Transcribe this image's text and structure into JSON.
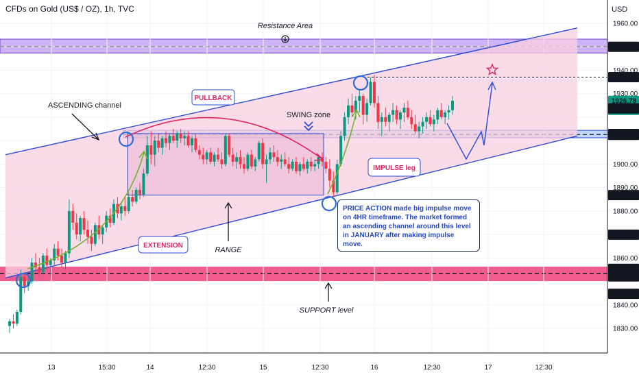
{
  "header": {
    "title": "CFDs on Gold (US$ / OZ), 1h, TVC",
    "currency": "USD"
  },
  "colors": {
    "up": "#089981",
    "down": "#f23645",
    "channel_fill": "#f8cfe0",
    "channel_line": "#2b4bd2",
    "resistance_zone": "#b38cf1",
    "support_zone": "#ef3f7a",
    "swing_zone": "#a9c8f5",
    "arrow_green": "#71b42c",
    "pullback_arc": "#e0245e"
  },
  "chart_data": {
    "type": "candlestick",
    "symbol": "CFDs on Gold (US$ / OZ)",
    "timeframe": "1h",
    "source": "TVC",
    "currency": "USD",
    "ylim": [
      1822,
      1968
    ],
    "y_ticks": [
      1830,
      1840,
      1850,
      1860,
      1870,
      1880,
      1890,
      1900,
      1910,
      1920,
      1930,
      1940,
      1950,
      1960
    ],
    "y_tick_labels": [
      "1830.00",
      "1840.00",
      "",
      "1860.00",
      "",
      "1880.00",
      "1890.00",
      "1900.00",
      "",
      "",
      "1930.00",
      "1940.00",
      "",
      "1960.00"
    ],
    "x_ticks": [
      "13",
      "15:30",
      "14",
      "12:30",
      "15",
      "12:30",
      "16",
      "12:30",
      "17",
      "12:30"
    ],
    "price_tags": [
      {
        "value": "1950.00",
        "price": 1950.0,
        "color": "#131722"
      },
      {
        "value": "1937.08",
        "price": 1937.08,
        "color": "#131722"
      },
      {
        "value": "1926.78",
        "price": 1926.78,
        "color": "#089981",
        "sub": "00:54"
      },
      {
        "value": "1923.74",
        "price": 1923.74,
        "color": "#131722"
      },
      {
        "value": "1912.82",
        "price": 1912.82,
        "color": "#131722"
      },
      {
        "value": "1912.45",
        "price": 1912.45,
        "color": "#131722"
      },
      {
        "value": "1886.80",
        "price": 1886.8,
        "color": "#131722"
      },
      {
        "value": "1869.92",
        "price": 1869.92,
        "color": "#131722"
      },
      {
        "value": "1855.34",
        "price": 1855.34,
        "color": "#131722"
      },
      {
        "value": "1853.31",
        "price": 1853.31,
        "color": "#131722"
      },
      {
        "value": "1845.29",
        "price": 1845.29,
        "color": "#131722"
      }
    ],
    "zones": {
      "resistance": [
        1948.8,
        1951.8
      ],
      "support": [
        1851.0,
        1855.4
      ],
      "swing": [
        1911.8,
        1913.8
      ],
      "range": [
        1886.8,
        1913.0
      ]
    },
    "channel": {
      "upper": [
        [
          0,
          1904
        ],
        [
          1,
          1958
        ]
      ],
      "lower": [
        [
          0,
          1851.5
        ],
        [
          1,
          1912
        ]
      ]
    },
    "candles_ohlc": [
      [
        1831,
        1834,
        1828,
        1833
      ],
      [
        1833,
        1836,
        1830,
        1832
      ],
      [
        1832,
        1838,
        1831,
        1837
      ],
      [
        1837,
        1855,
        1836,
        1852
      ],
      [
        1852,
        1854,
        1845,
        1848
      ],
      [
        1848,
        1852,
        1846,
        1850
      ],
      [
        1850,
        1860,
        1849,
        1858
      ],
      [
        1858,
        1862,
        1854,
        1856
      ],
      [
        1856,
        1860,
        1852,
        1854
      ],
      [
        1854,
        1862,
        1853,
        1861
      ],
      [
        1861,
        1864,
        1855,
        1857
      ],
      [
        1857,
        1860,
        1852,
        1859
      ],
      [
        1859,
        1866,
        1857,
        1864
      ],
      [
        1864,
        1867,
        1859,
        1861
      ],
      [
        1861,
        1864,
        1856,
        1858
      ],
      [
        1858,
        1863,
        1855,
        1862
      ],
      [
        1862,
        1885,
        1860,
        1880
      ],
      [
        1880,
        1883,
        1872,
        1875
      ],
      [
        1875,
        1879,
        1868,
        1870
      ],
      [
        1870,
        1878,
        1867,
        1877
      ],
      [
        1877,
        1880,
        1870,
        1872
      ],
      [
        1872,
        1876,
        1866,
        1869
      ],
      [
        1869,
        1872,
        1863,
        1866
      ],
      [
        1866,
        1875,
        1865,
        1874
      ],
      [
        1874,
        1878,
        1868,
        1870
      ],
      [
        1870,
        1874,
        1866,
        1873
      ],
      [
        1873,
        1880,
        1871,
        1878
      ],
      [
        1878,
        1881,
        1873,
        1875
      ],
      [
        1875,
        1885,
        1874,
        1883
      ],
      [
        1883,
        1886,
        1877,
        1879
      ],
      [
        1879,
        1884,
        1876,
        1882
      ],
      [
        1882,
        1886,
        1878,
        1880
      ],
      [
        1880,
        1888,
        1879,
        1886
      ],
      [
        1886,
        1889,
        1882,
        1884
      ],
      [
        1884,
        1890,
        1883,
        1889
      ],
      [
        1889,
        1892,
        1885,
        1887
      ],
      [
        1887,
        1898,
        1886,
        1896
      ],
      [
        1896,
        1912,
        1895,
        1908
      ],
      [
        1908,
        1914,
        1900,
        1904
      ],
      [
        1904,
        1912,
        1899,
        1910
      ],
      [
        1910,
        1913,
        1905,
        1907
      ],
      [
        1907,
        1912,
        1904,
        1911
      ],
      [
        1911,
        1914,
        1907,
        1909
      ],
      [
        1909,
        1913,
        1906,
        1912
      ],
      [
        1912,
        1915,
        1909,
        1910
      ],
      [
        1910,
        1914,
        1907,
        1913
      ],
      [
        1913,
        1915,
        1909,
        1911
      ],
      [
        1911,
        1914,
        1908,
        1912
      ],
      [
        1912,
        1914,
        1907,
        1908
      ],
      [
        1908,
        1912,
        1905,
        1911
      ],
      [
        1911,
        1913,
        1905,
        1906
      ],
      [
        1906,
        1908,
        1902,
        1904
      ],
      [
        1904,
        1907,
        1900,
        1902
      ],
      [
        1902,
        1906,
        1900,
        1905
      ],
      [
        1905,
        1907,
        1900,
        1901
      ],
      [
        1901,
        1905,
        1899,
        1904
      ],
      [
        1904,
        1907,
        1901,
        1902
      ],
      [
        1902,
        1905,
        1898,
        1900
      ],
      [
        1900,
        1913,
        1899,
        1912
      ],
      [
        1912,
        1913,
        1903,
        1904
      ],
      [
        1904,
        1907,
        1899,
        1901
      ],
      [
        1901,
        1905,
        1898,
        1903
      ],
      [
        1903,
        1906,
        1898,
        1900
      ],
      [
        1900,
        1903,
        1896,
        1898
      ],
      [
        1898,
        1905,
        1897,
        1904
      ],
      [
        1904,
        1906,
        1898,
        1899
      ],
      [
        1899,
        1903,
        1897,
        1902
      ],
      [
        1902,
        1910,
        1901,
        1909
      ],
      [
        1909,
        1911,
        1898,
        1900
      ],
      [
        1900,
        1904,
        1892,
        1902
      ],
      [
        1902,
        1907,
        1900,
        1905
      ],
      [
        1905,
        1908,
        1901,
        1903
      ],
      [
        1903,
        1906,
        1899,
        1901
      ],
      [
        1901,
        1904,
        1898,
        1902
      ],
      [
        1902,
        1905,
        1899,
        1900
      ],
      [
        1900,
        1903,
        1896,
        1898
      ],
      [
        1898,
        1902,
        1897,
        1901
      ],
      [
        1901,
        1903,
        1896,
        1897
      ],
      [
        1897,
        1901,
        1895,
        1900
      ],
      [
        1900,
        1903,
        1897,
        1898
      ],
      [
        1898,
        1902,
        1896,
        1901
      ],
      [
        1901,
        1903,
        1897,
        1899
      ],
      [
        1899,
        1902,
        1897,
        1900
      ],
      [
        1900,
        1904,
        1898,
        1903
      ],
      [
        1903,
        1905,
        1899,
        1901
      ],
      [
        1901,
        1903,
        1896,
        1898
      ],
      [
        1898,
        1902,
        1890,
        1893
      ],
      [
        1893,
        1897,
        1886,
        1888
      ],
      [
        1888,
        1902,
        1887,
        1900
      ],
      [
        1900,
        1914,
        1899,
        1912
      ],
      [
        1912,
        1922,
        1910,
        1920
      ],
      [
        1920,
        1928,
        1917,
        1925
      ],
      [
        1925,
        1930,
        1920,
        1922
      ],
      [
        1922,
        1929,
        1919,
        1927
      ],
      [
        1927,
        1932,
        1922,
        1929
      ],
      [
        1929,
        1930,
        1917,
        1921
      ],
      [
        1921,
        1928,
        1918,
        1926
      ],
      [
        1926,
        1937,
        1925,
        1935
      ],
      [
        1935,
        1938,
        1924,
        1926
      ],
      [
        1926,
        1929,
        1915,
        1918
      ],
      [
        1918,
        1922,
        1912,
        1920
      ],
      [
        1920,
        1924,
        1916,
        1918
      ],
      [
        1918,
        1922,
        1914,
        1921
      ],
      [
        1921,
        1926,
        1918,
        1923
      ],
      [
        1923,
        1925,
        1917,
        1919
      ],
      [
        1919,
        1923,
        1915,
        1922
      ],
      [
        1922,
        1926,
        1918,
        1924
      ],
      [
        1924,
        1927,
        1919,
        1920
      ],
      [
        1920,
        1923,
        1915,
        1917
      ],
      [
        1917,
        1921,
        1913,
        1914
      ],
      [
        1914,
        1918,
        1911,
        1916
      ],
      [
        1916,
        1920,
        1913,
        1918
      ],
      [
        1918,
        1922,
        1915,
        1920
      ],
      [
        1920,
        1923,
        1916,
        1917
      ],
      [
        1917,
        1921,
        1914,
        1919
      ],
      [
        1919,
        1924,
        1917,
        1923
      ],
      [
        1923,
        1926,
        1919,
        1920
      ],
      [
        1920,
        1923,
        1917,
        1922
      ],
      [
        1922,
        1925,
        1919,
        1923
      ],
      [
        1923,
        1929,
        1921,
        1927
      ]
    ]
  },
  "annotations": {
    "resistance": "Resistance Area",
    "ascending": "ASCENDING channel",
    "pullback": "PULLBACK",
    "swing": "SWING zone",
    "impulse": "IMPULSE leg",
    "extension": "EXTENSION",
    "range": "RANGE",
    "support": "SUPPORT level",
    "note": "PRICE ACTION made big impulse move\non 4HR timeframe. The market formed\nan ascending channel around  this level\nin JANUARY after making impulse move."
  }
}
